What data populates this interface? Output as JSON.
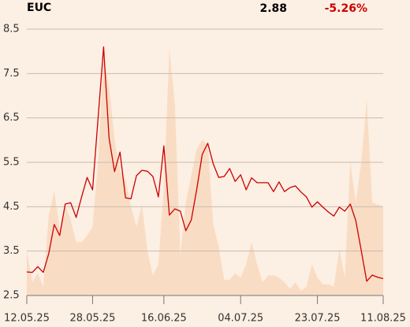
{
  "header": {
    "symbol": "EUC",
    "price": "2.88",
    "change": "-5.26%"
  },
  "chart_data": {
    "type": "line",
    "categories": [
      "12.05.25",
      null,
      null,
      null,
      null,
      null,
      null,
      null,
      null,
      null,
      null,
      null,
      "28.05.25",
      null,
      null,
      null,
      null,
      null,
      null,
      null,
      null,
      null,
      null,
      null,
      null,
      "16.06.25",
      null,
      null,
      null,
      null,
      null,
      null,
      null,
      null,
      null,
      null,
      null,
      null,
      null,
      "04.07.25",
      null,
      null,
      null,
      null,
      null,
      null,
      null,
      null,
      null,
      null,
      null,
      null,
      null,
      "23.07.25",
      null,
      null,
      null,
      null,
      null,
      null,
      null,
      null,
      null,
      null,
      null,
      "11.08.25"
    ],
    "series": [
      {
        "kind": "area",
        "color": "#f9dcc4",
        "values": [
          3.5,
          2.8,
          3.0,
          2.7,
          4.3,
          4.85,
          4.0,
          4.55,
          4.2,
          3.7,
          3.7,
          3.85,
          4.05,
          5.5,
          7.9,
          7.2,
          6.0,
          5.3,
          5.1,
          4.5,
          4.05,
          4.55,
          3.5,
          2.95,
          3.2,
          4.9,
          8.05,
          6.8,
          3.4,
          4.6,
          5.2,
          5.8,
          6.0,
          5.9,
          4.1,
          3.6,
          2.85,
          2.85,
          3.0,
          2.9,
          3.2,
          3.7,
          3.2,
          2.8,
          2.95,
          2.95,
          2.9,
          2.8,
          2.65,
          2.8,
          2.6,
          2.7,
          3.2,
          2.9,
          2.75,
          2.75,
          2.7,
          3.55,
          2.9,
          5.5,
          4.6,
          5.5,
          6.9,
          4.6,
          4.55,
          4.5
        ]
      },
      {
        "kind": "line",
        "color": "#cc0000",
        "values": [
          3.03,
          3.02,
          3.15,
          3.02,
          3.44,
          4.1,
          3.85,
          4.56,
          4.59,
          4.26,
          4.72,
          5.16,
          4.88,
          6.5,
          8.1,
          6.05,
          5.29,
          5.73,
          4.7,
          4.68,
          5.2,
          5.32,
          5.3,
          5.18,
          4.72,
          5.87,
          4.31,
          4.45,
          4.4,
          3.96,
          4.2,
          4.9,
          5.68,
          5.93,
          5.47,
          5.16,
          5.18,
          5.36,
          5.07,
          5.22,
          4.88,
          5.15,
          5.04,
          5.04,
          5.04,
          4.84,
          5.06,
          4.84,
          4.93,
          4.97,
          4.83,
          4.72,
          4.49,
          4.61,
          4.49,
          4.38,
          4.29,
          4.49,
          4.4,
          4.56,
          4.19,
          3.51,
          2.82,
          2.96,
          2.91,
          2.88
        ]
      }
    ],
    "ylim": [
      2.5,
      8.5
    ],
    "yticks": [
      2.5,
      3.5,
      4.5,
      5.5,
      6.5,
      7.5,
      8.5
    ],
    "grid": true
  }
}
